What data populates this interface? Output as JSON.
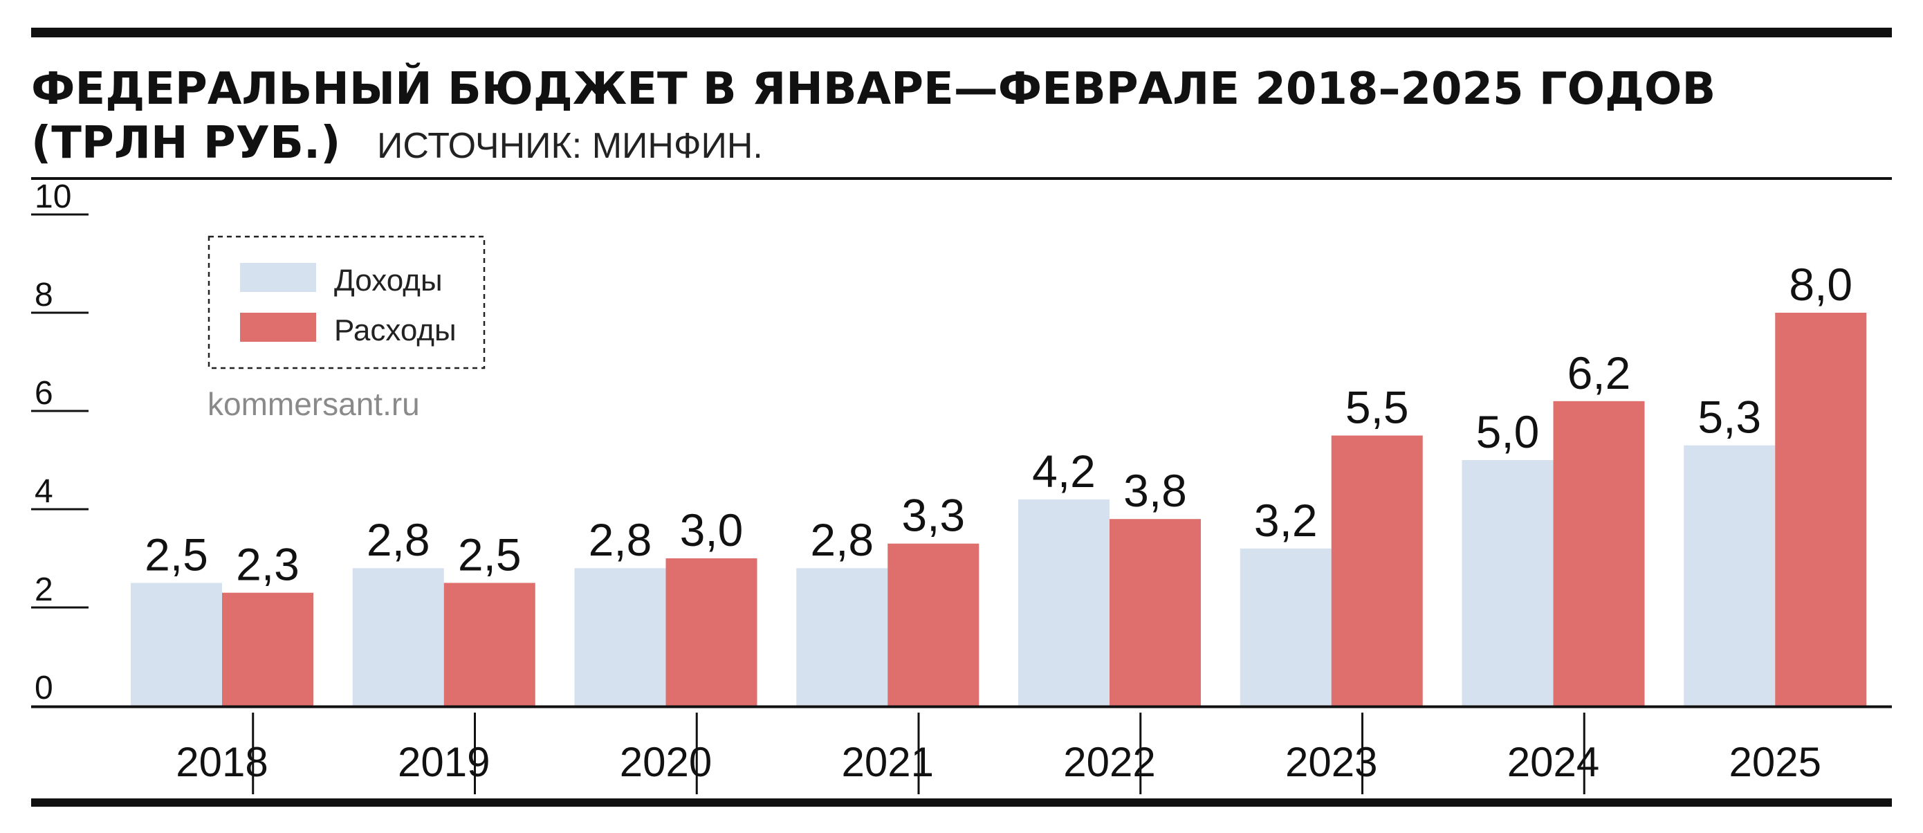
{
  "title_line1": "ФЕДЕРАЛЬНЫЙ БЮДЖЕТ В ЯНВАРЕ—ФЕВРАЛЕ 2018–2025 ГОДОВ",
  "title_line2": "(ТРЛН РУБ.)",
  "source": "ИСТОЧНИК: МИНФИН.",
  "watermark": "kommersant.ru",
  "colors": {
    "income": "#d6e1ef",
    "expense": "#de6f6c",
    "rule": "#111111"
  },
  "chart_data": {
    "type": "bar",
    "categories": [
      "2018",
      "2019",
      "2020",
      "2021",
      "2022",
      "2023",
      "2024",
      "2025"
    ],
    "series": [
      {
        "name": "Доходы",
        "values": [
          2.5,
          2.8,
          2.8,
          2.8,
          4.2,
          3.2,
          5.0,
          5.3
        ],
        "labels": [
          "2,5",
          "2,8",
          "2,8",
          "2,8",
          "4,2",
          "3,2",
          "5,0",
          "5,3"
        ]
      },
      {
        "name": "Расходы",
        "values": [
          2.3,
          2.5,
          3.0,
          3.3,
          3.8,
          5.5,
          6.2,
          8.0
        ],
        "labels": [
          "2,3",
          "2,5",
          "3,0",
          "3,3",
          "3,8",
          "5,5",
          "6,2",
          "8,0"
        ]
      }
    ],
    "yticks": [
      "0",
      "2",
      "4",
      "6",
      "8",
      "10"
    ],
    "ylim": [
      0,
      10
    ],
    "legend_position": "top-left",
    "grid": false
  }
}
